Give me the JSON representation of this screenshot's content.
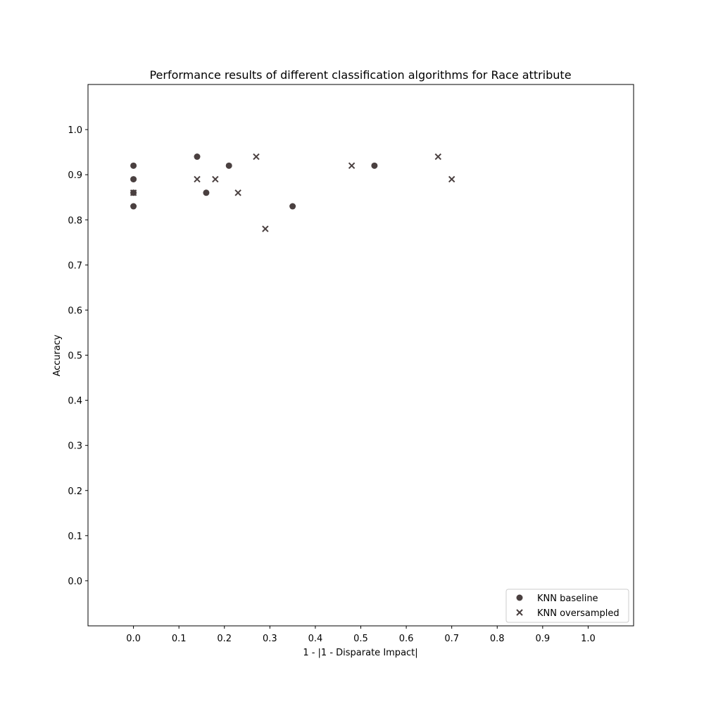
{
  "chart_data": {
    "type": "scatter",
    "title": "Performance results of different classification algorithms for Race attribute",
    "xlabel": "1 - |1 - Disparate Impact|",
    "ylabel": "Accuracy",
    "xlim": [
      -0.1,
      1.1
    ],
    "ylim": [
      -0.1,
      1.1
    ],
    "x_ticks": [
      "0.0",
      "0.1",
      "0.2",
      "0.3",
      "0.4",
      "0.5",
      "0.6",
      "0.7",
      "0.8",
      "0.9",
      "1.0"
    ],
    "y_ticks": [
      "0.0",
      "0.1",
      "0.2",
      "0.3",
      "0.4",
      "0.5",
      "0.6",
      "0.7",
      "0.8",
      "0.9",
      "1.0"
    ],
    "grid": false,
    "legend_position": "bottom-right",
    "series": [
      {
        "name": "KNN baseline",
        "marker": "circle",
        "color": "#4a4040",
        "points": [
          {
            "x": 0.0,
            "y": 0.92
          },
          {
            "x": 0.0,
            "y": 0.89
          },
          {
            "x": 0.0,
            "y": 0.86
          },
          {
            "x": 0.0,
            "y": 0.83
          },
          {
            "x": 0.14,
            "y": 0.94
          },
          {
            "x": 0.16,
            "y": 0.86
          },
          {
            "x": 0.21,
            "y": 0.92
          },
          {
            "x": 0.35,
            "y": 0.83
          },
          {
            "x": 0.53,
            "y": 0.92
          }
        ]
      },
      {
        "name": "KNN oversampled",
        "marker": "x",
        "color": "#4a4040",
        "points": [
          {
            "x": 0.0,
            "y": 0.86
          },
          {
            "x": 0.14,
            "y": 0.89
          },
          {
            "x": 0.18,
            "y": 0.89
          },
          {
            "x": 0.23,
            "y": 0.86
          },
          {
            "x": 0.27,
            "y": 0.94
          },
          {
            "x": 0.29,
            "y": 0.78
          },
          {
            "x": 0.48,
            "y": 0.92
          },
          {
            "x": 0.67,
            "y": 0.94
          },
          {
            "x": 0.7,
            "y": 0.89
          }
        ]
      }
    ]
  }
}
